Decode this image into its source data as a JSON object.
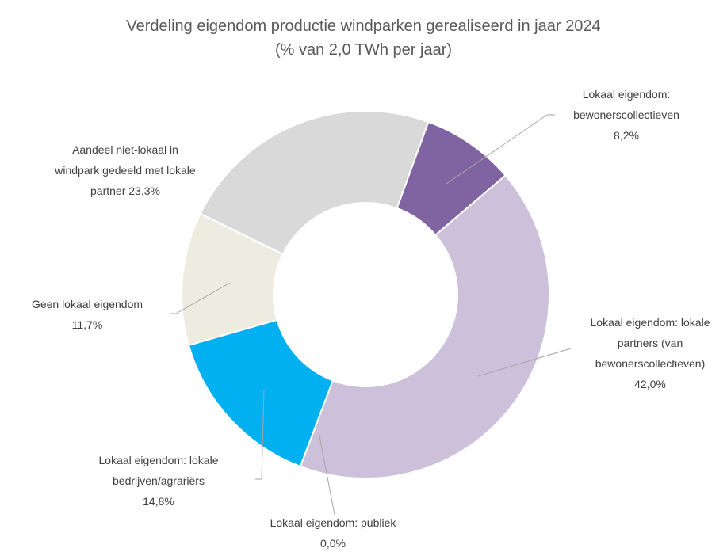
{
  "chart_data": {
    "type": "donut",
    "title": "Verdeling eigendom productie windparken gerealiseerd in jaar 2024",
    "subtitle": "(% van 2,0 TWh per jaar)",
    "categories": [
      "Lokaal eigendom: bewonerscollectieven",
      "Lokaal eigendom: lokale partners (van bewonerscollectieven)",
      "Lokaal eigendom: publiek",
      "Lokaal eigendom: lokale bedrijven/agrariërs",
      "Geen lokaal eigendom",
      "Aandeel niet-lokaal in windpark gedeeld met lokale partner"
    ],
    "values": [
      8.2,
      42.0,
      0.0,
      14.8,
      11.7,
      23.3
    ],
    "value_labels": [
      "8,2%",
      "42,0%",
      "0,0%",
      "14,8%",
      "11,7%",
      "23,3%"
    ],
    "colors": [
      "#8064a2",
      "#ccc0da",
      "#4f81bd",
      "#00b0f0",
      "#eeece1",
      "#d9d9d9"
    ]
  }
}
